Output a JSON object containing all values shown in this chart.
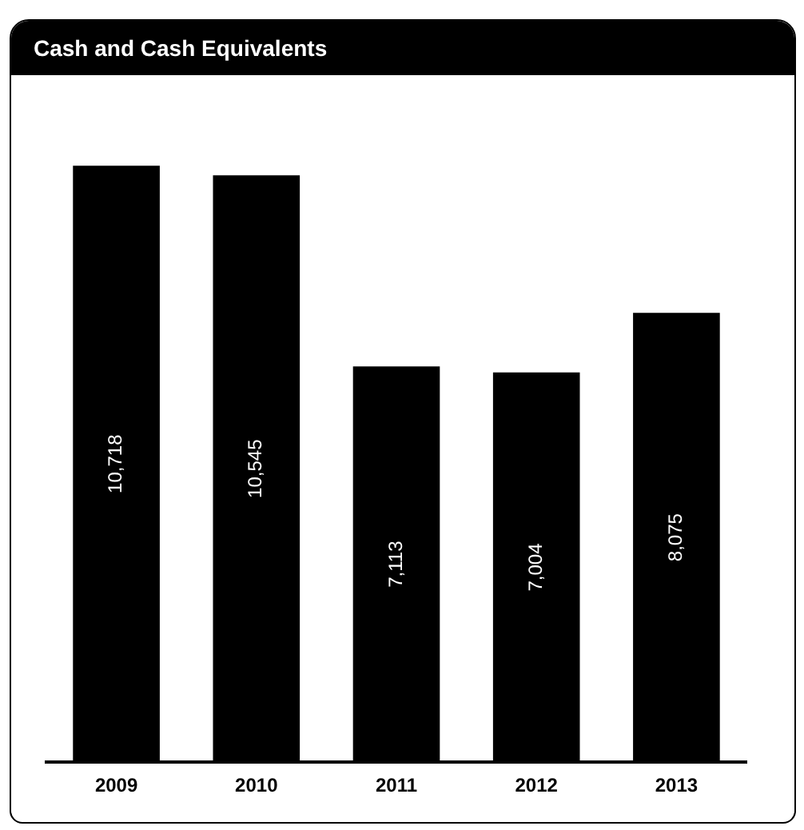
{
  "chart_data": {
    "type": "bar",
    "title": "Cash and Cash Equivalents",
    "categories": [
      "2009",
      "2010",
      "2011",
      "2012",
      "2013"
    ],
    "values": [
      10718,
      10545,
      7113,
      7004,
      8075
    ],
    "value_labels": [
      "10,718",
      "10,545",
      "7,113",
      "7,004",
      "8,075"
    ],
    "color": "#000000",
    "grid": false,
    "legend": false
  }
}
